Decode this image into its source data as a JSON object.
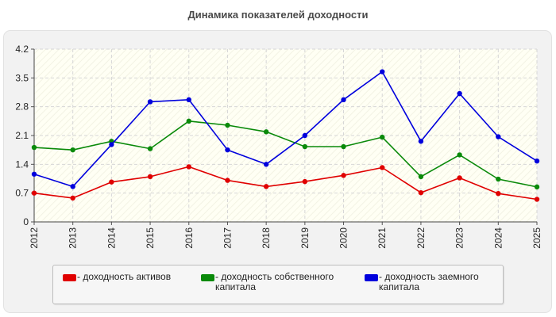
{
  "header": {
    "title": "Динамика показателей доходности"
  },
  "chart_data": {
    "type": "line",
    "title": "Динамика показателей доходности",
    "xlabel": "",
    "ylabel": "",
    "categories": [
      "2012",
      "2013",
      "2014",
      "2015",
      "2016",
      "2017",
      "2018",
      "2019",
      "2020",
      "2021",
      "2022",
      "2023",
      "2024",
      "2025"
    ],
    "ylim": [
      0,
      4.2
    ],
    "yticks": [
      "0",
      "0.7",
      "1.4",
      "2.1",
      "2.8",
      "3.5",
      "4.2"
    ],
    "grid": true,
    "legend_position": "bottom",
    "series": [
      {
        "name": "- доходность активов",
        "color": "#e00000",
        "values": [
          0.7,
          0.58,
          0.97,
          1.1,
          1.34,
          1.01,
          0.86,
          0.98,
          1.13,
          1.32,
          0.71,
          1.07,
          0.69,
          0.55
        ]
      },
      {
        "name": "- доходность собственного капитала",
        "color": "#0a8a0a",
        "values": [
          1.81,
          1.75,
          1.96,
          1.78,
          2.45,
          2.35,
          2.19,
          1.83,
          1.83,
          2.06,
          1.1,
          1.63,
          1.04,
          0.85
        ]
      },
      {
        "name": "- доходность заемного капитала",
        "color": "#0000dd",
        "values": [
          1.16,
          0.86,
          1.88,
          2.92,
          2.97,
          1.75,
          1.4,
          2.1,
          2.97,
          3.65,
          1.96,
          3.12,
          2.07,
          1.48
        ]
      }
    ]
  }
}
